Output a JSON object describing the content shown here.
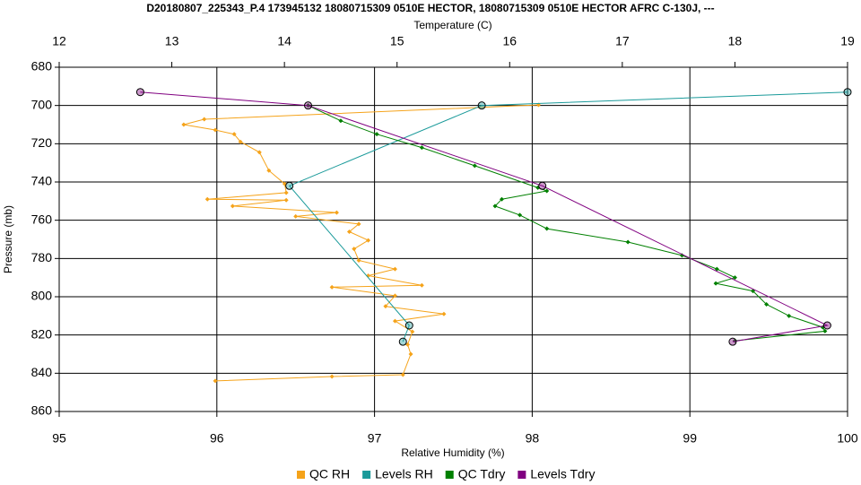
{
  "chart_data": {
    "type": "line",
    "title": "D20180807_225343_P.4 173945132 18080715309 0510E HECTOR, 18080715309 0510E HECTOR AFRC C-130J, ---",
    "x_label": "Relative Humidity (%)",
    "x2_label": "Temperature (C)",
    "y_label": "Pressure (mb)",
    "xlim": [
      95,
      100
    ],
    "xticks": [
      95,
      96,
      97,
      98,
      99,
      100
    ],
    "x2lim": [
      12,
      19
    ],
    "x2ticks": [
      12,
      13,
      14,
      15,
      16,
      17,
      18,
      19
    ],
    "ylim": [
      680,
      860
    ],
    "y_inverted": true,
    "yticks": [
      680,
      700,
      720,
      740,
      760,
      780,
      800,
      820,
      840,
      860
    ],
    "grid": true,
    "legend": "bottom",
    "series": [
      {
        "name": "QC RH",
        "color": "#f5a31a",
        "axis": "x",
        "marker": "diamond",
        "x": [
          98.04,
          95.92,
          95.79,
          95.99,
          96.11,
          96.15,
          96.27,
          96.33,
          96.43,
          96.44,
          95.94,
          96.44,
          96.1,
          96.76,
          96.5,
          96.9,
          96.84,
          96.96,
          96.87,
          96.9,
          97.13,
          96.96,
          97.3,
          96.73,
          97.13,
          97.07,
          97.44,
          97.13,
          97.24,
          97.21,
          97.23,
          97.18,
          96.73,
          95.99
        ],
        "y": [
          699.7,
          707.2,
          710,
          712.8,
          715,
          719,
          724.5,
          734,
          741,
          745.6,
          749,
          749.5,
          752.6,
          756,
          758,
          762,
          766,
          770.5,
          775,
          781,
          785.5,
          789,
          794,
          795,
          799.5,
          805,
          809,
          812.7,
          818.3,
          825,
          830,
          840.8,
          841.7,
          844
        ]
      },
      {
        "name": "Levels RH",
        "color": "#1a9a9a",
        "axis": "x",
        "marker": "circle",
        "x": [
          100,
          97.68,
          96.46,
          97.22,
          97.18
        ],
        "y": [
          693,
          700,
          742,
          815,
          823.5
        ]
      },
      {
        "name": "QC Tdry",
        "color": "#008000",
        "axis": "x2",
        "marker": "diamond",
        "x": [
          14.21,
          14.5,
          14.82,
          15.22,
          15.69,
          16.25,
          16.33,
          15.93,
          15.87,
          16.09,
          16.33,
          17.05,
          17.53,
          17.84,
          18.0,
          17.83,
          18.16,
          18.28,
          18.48,
          18.78,
          18.8,
          18.0
        ],
        "y": [
          700,
          708,
          715,
          722,
          731.5,
          743,
          744.7,
          749,
          752.6,
          757.3,
          764.4,
          771.4,
          778.4,
          785.5,
          790,
          793,
          797,
          804,
          810,
          816,
          818,
          823
        ]
      },
      {
        "name": "Levels Tdry",
        "color": "#800080",
        "axis": "x2",
        "marker": "circle",
        "x": [
          12.72,
          14.21,
          16.29,
          18.82,
          17.98
        ],
        "y": [
          693,
          700,
          742,
          815,
          823.5
        ]
      }
    ]
  }
}
